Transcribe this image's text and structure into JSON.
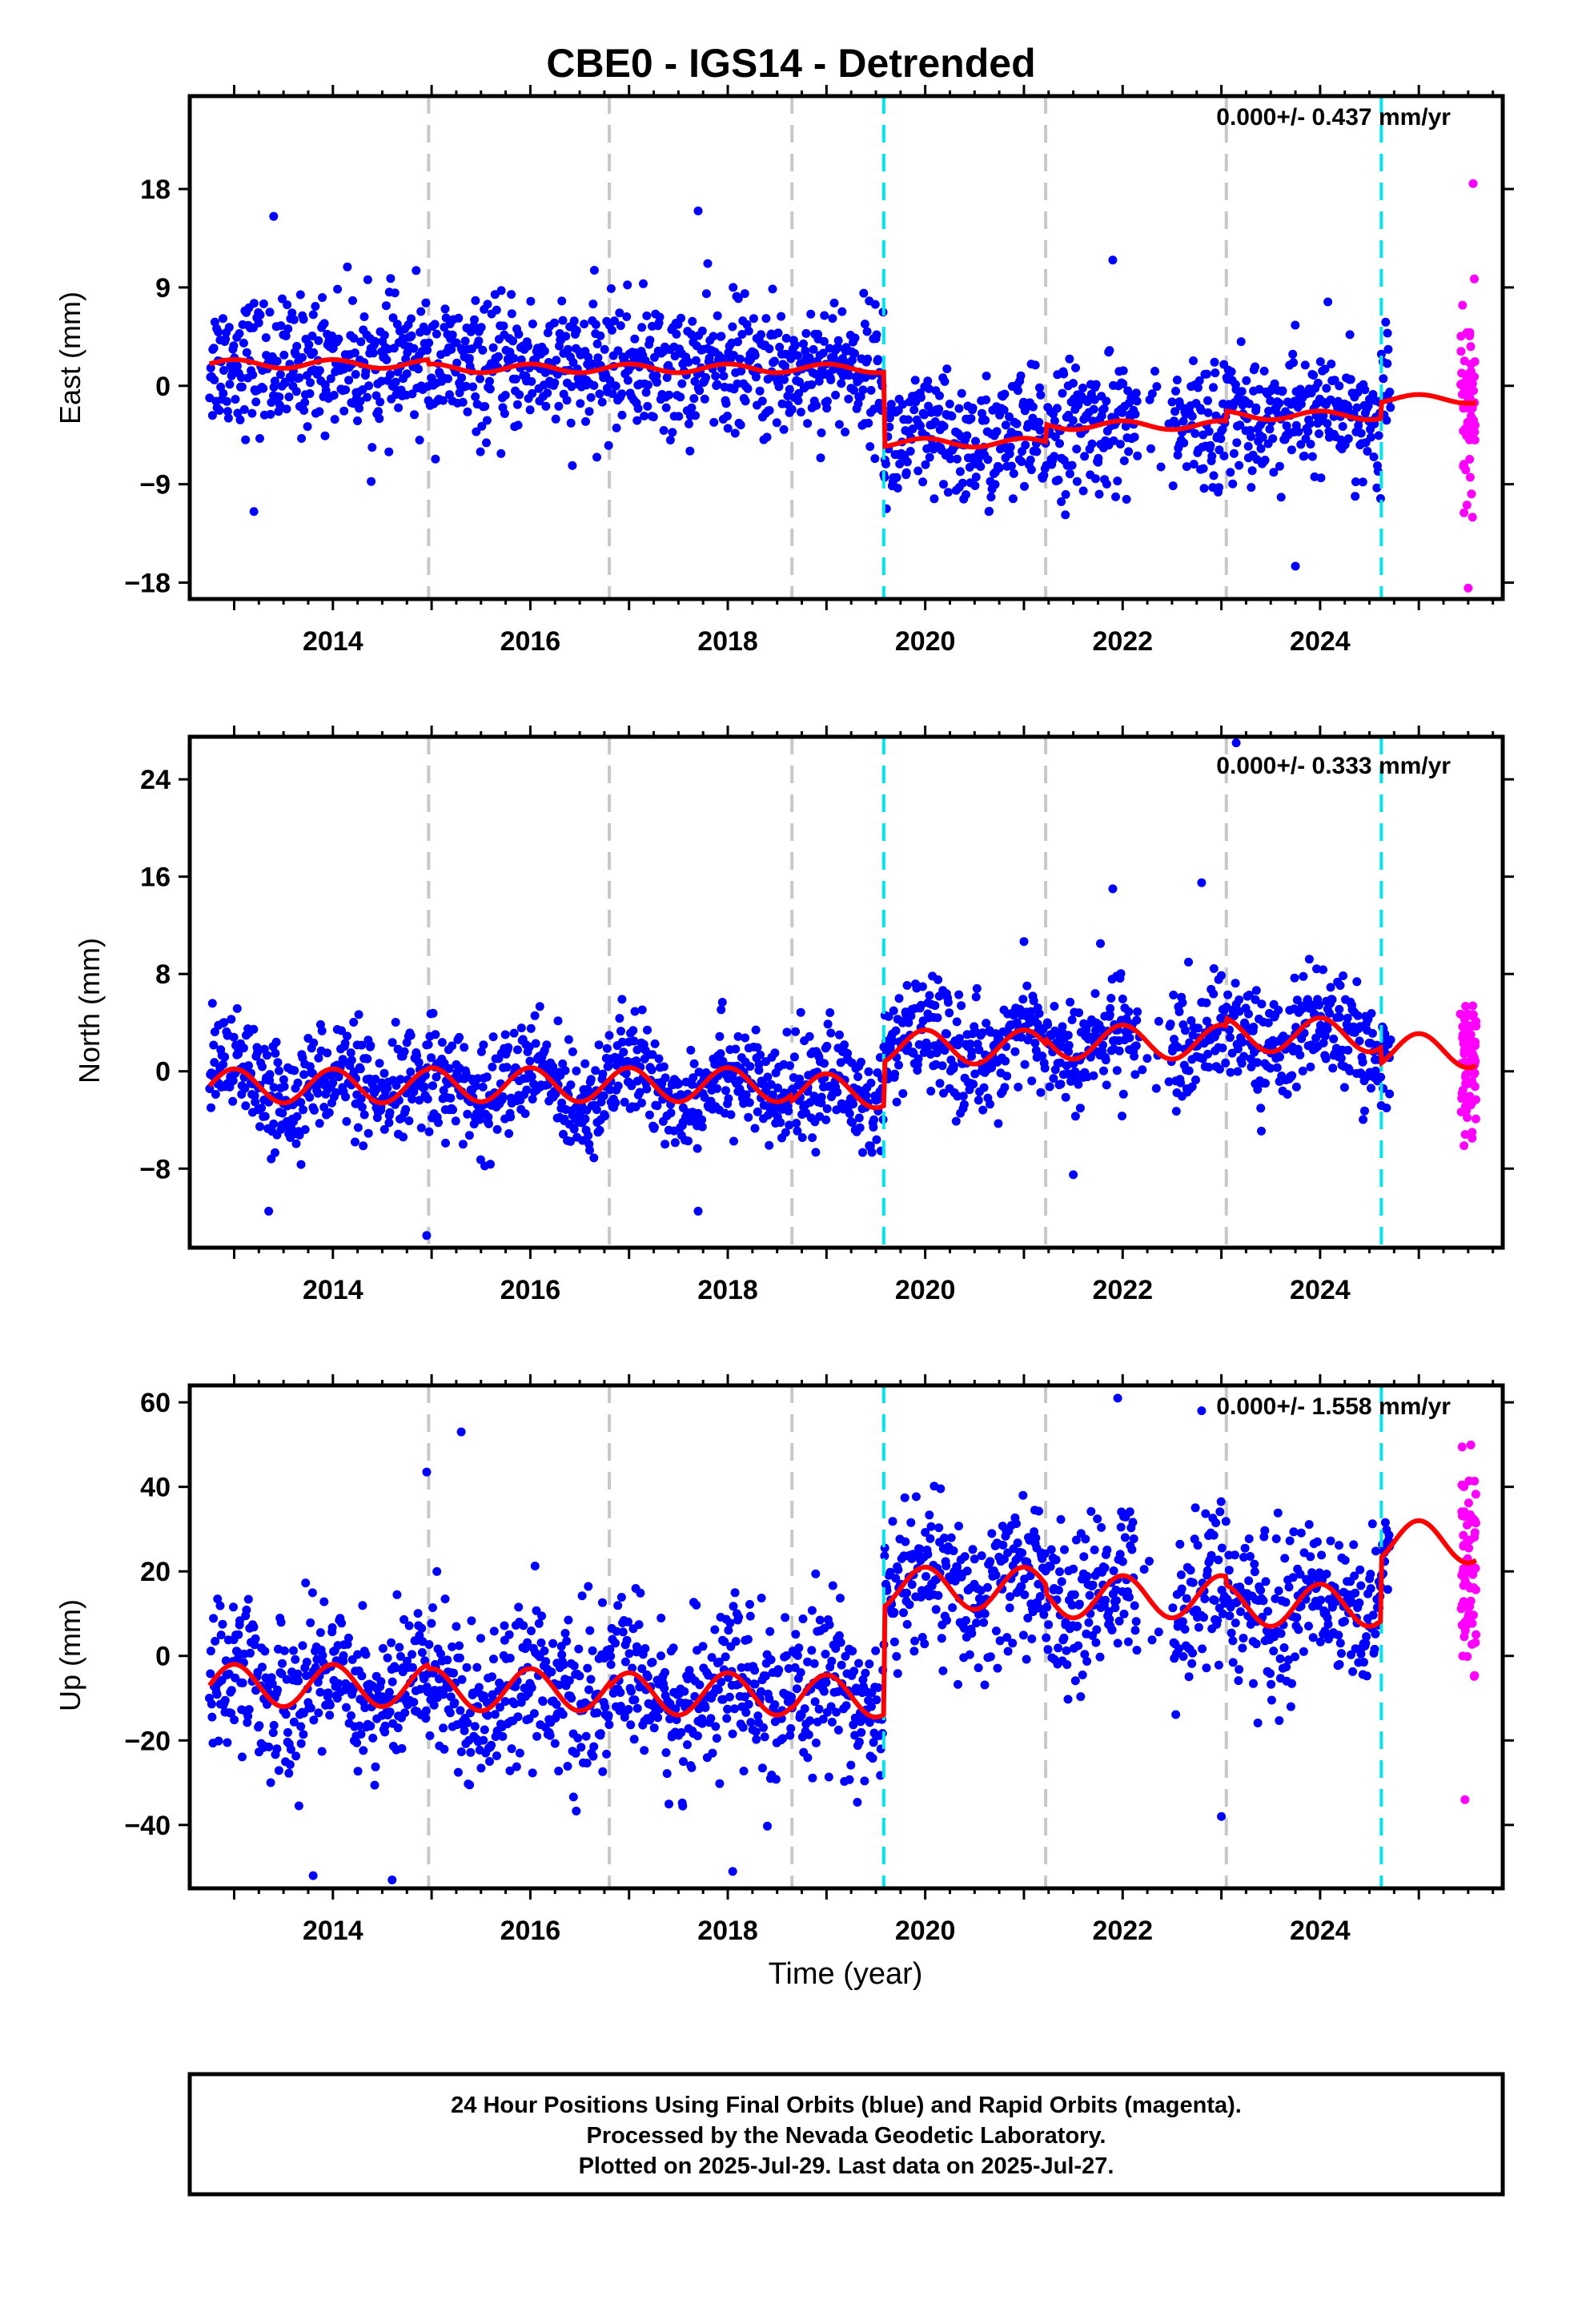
{
  "title": "CBE0 - IGS14 - Detrended",
  "colors": {
    "final_orbits": "#0000ff",
    "rapid_orbits": "#ff00ff",
    "model": "#ff0000",
    "equipment_change": "#c8c8c8",
    "earthquake_offset": "#00e5ee",
    "frame": "#000000"
  },
  "footer": {
    "line1": "24 Hour Positions Using Final Orbits (blue) and Rapid Orbits (magenta).",
    "line2": "Processed by the Nevada Geodetic Laboratory.",
    "line3": "Plotted on 2025-Jul-29. Last data on 2025-Jul-27."
  },
  "chart_data": [
    {
      "type": "scatter",
      "panel": "east",
      "ylabel": "East (mm)",
      "xlabel": "",
      "rate_text": "0.000+/- 0.437 mm/yr",
      "xlim": [
        2012.55,
        2025.85
      ],
      "ylim": [
        -19.5,
        26.5
      ],
      "xticks": [
        2014,
        2016,
        2018,
        2020,
        2022,
        2024
      ],
      "yticks": [
        18,
        9,
        0,
        -9,
        -18
      ],
      "grid": false,
      "gray_lines": [
        2014.97,
        2016.8,
        2018.65,
        2021.22,
        2023.05
      ],
      "cyan_lines": [
        2019.58,
        2024.62
      ],
      "data_start": 2012.75,
      "final_end": 2024.72,
      "rapid_range": [
        2025.42,
        2025.58
      ],
      "outliers": [
        [
          2013.4,
          15.5
        ],
        [
          2017.7,
          16
        ],
        [
          2021.9,
          11.5
        ],
        [
          2023.75,
          -16.5
        ],
        [
          2013.2,
          -11.5
        ],
        [
          2025.5,
          -18.5
        ],
        [
          2025.55,
          18.5
        ]
      ],
      "model_segments": [
        {
          "x": [
            2012.75,
            2014.97
          ],
          "offset": 2.0,
          "amp": 0.4
        },
        {
          "x": [
            2014.97,
            2019.58
          ],
          "offset": 1.6,
          "amp": 0.4
        },
        {
          "x": [
            2019.58,
            2021.22
          ],
          "offset": -5.2,
          "amp": 0.4
        },
        {
          "x": [
            2021.22,
            2023.05
          ],
          "offset": -3.6,
          "amp": 0.4
        },
        {
          "x": [
            2023.05,
            2024.62
          ],
          "offset": -2.7,
          "amp": 0.4
        },
        {
          "x": [
            2024.62,
            2025.58
          ],
          "offset": -1.2,
          "amp": 0.4
        }
      ],
      "scatter_sd": 3.0
    },
    {
      "type": "scatter",
      "panel": "north",
      "ylabel": "North (mm)",
      "xlabel": "",
      "rate_text": "0.000+/- 0.333 mm/yr",
      "xlim": [
        2012.55,
        2025.85
      ],
      "ylim": [
        -14.5,
        27.5
      ],
      "xticks": [
        2014,
        2016,
        2018,
        2020,
        2022,
        2024
      ],
      "yticks": [
        24,
        16,
        8,
        0,
        -8
      ],
      "grid": false,
      "gray_lines": [
        2014.97,
        2016.8,
        2018.65,
        2021.22,
        2023.05
      ],
      "cyan_lines": [
        2019.58,
        2024.62
      ],
      "data_start": 2012.75,
      "final_end": 2024.72,
      "rapid_range": [
        2025.42,
        2025.58
      ],
      "outliers": [
        [
          2014.95,
          -13.5
        ],
        [
          2017.7,
          -11.5
        ],
        [
          2021.9,
          15
        ],
        [
          2022.8,
          15.5
        ],
        [
          2023.15,
          27
        ],
        [
          2013.35,
          -11.5
        ],
        [
          2021.5,
          -8.5
        ]
      ],
      "model_segments": [
        {
          "x": [
            2012.75,
            2014.97
          ],
          "offset": -1.2,
          "amp": 1.4
        },
        {
          "x": [
            2014.97,
            2018.65
          ],
          "offset": -1.1,
          "amp": 1.4
        },
        {
          "x": [
            2018.65,
            2019.58
          ],
          "offset": -1.6,
          "amp": 1.4
        },
        {
          "x": [
            2019.58,
            2021.22
          ],
          "offset": 2.0,
          "amp": 1.4
        },
        {
          "x": [
            2021.22,
            2023.05
          ],
          "offset": 2.4,
          "amp": 1.4
        },
        {
          "x": [
            2023.05,
            2024.62
          ],
          "offset": 3.0,
          "amp": 1.4
        },
        {
          "x": [
            2024.62,
            2025.58
          ],
          "offset": 1.7,
          "amp": 1.4
        }
      ],
      "scatter_sd": 2.2
    },
    {
      "type": "scatter",
      "panel": "up",
      "ylabel": "Up (mm)",
      "xlabel": "Time (year)",
      "rate_text": "0.000+/- 1.558 mm/yr",
      "xlim": [
        2012.55,
        2025.85
      ],
      "ylim": [
        -55,
        64
      ],
      "xticks": [
        2014,
        2016,
        2018,
        2020,
        2022,
        2024
      ],
      "yticks": [
        60,
        40,
        20,
        0,
        -20,
        -40
      ],
      "grid": false,
      "gray_lines": [
        2014.97,
        2016.8,
        2018.65,
        2021.22,
        2023.05
      ],
      "cyan_lines": [
        2019.58,
        2024.62
      ],
      "data_start": 2012.75,
      "final_end": 2024.72,
      "rapid_range": [
        2025.42,
        2025.58
      ],
      "outliers": [
        [
          2014.95,
          43.5
        ],
        [
          2015.3,
          53
        ],
        [
          2021.95,
          61
        ],
        [
          2022.8,
          58
        ],
        [
          2013.8,
          -52
        ],
        [
          2014.6,
          -53
        ],
        [
          2018.05,
          -51
        ],
        [
          2023.0,
          -38
        ]
      ],
      "model_segments": [
        {
          "x": [
            2012.75,
            2014.97
          ],
          "offset": -7.0,
          "amp": 5.0
        },
        {
          "x": [
            2014.97,
            2016.8
          ],
          "offset": -8.0,
          "amp": 5.0
        },
        {
          "x": [
            2016.8,
            2018.65
          ],
          "offset": -9.0,
          "amp": 5.0
        },
        {
          "x": [
            2018.65,
            2019.58
          ],
          "offset": -9.5,
          "amp": 5.0
        },
        {
          "x": [
            2019.58,
            2021.22
          ],
          "offset": 16.0,
          "amp": 5.0
        },
        {
          "x": [
            2021.22,
            2023.05
          ],
          "offset": 14.0,
          "amp": 5.0
        },
        {
          "x": [
            2023.05,
            2024.62
          ],
          "offset": 12.0,
          "amp": 5.0
        },
        {
          "x": [
            2024.62,
            2025.58
          ],
          "offset": 27.0,
          "amp": 5.0
        }
      ],
      "scatter_sd": 9.0
    }
  ]
}
